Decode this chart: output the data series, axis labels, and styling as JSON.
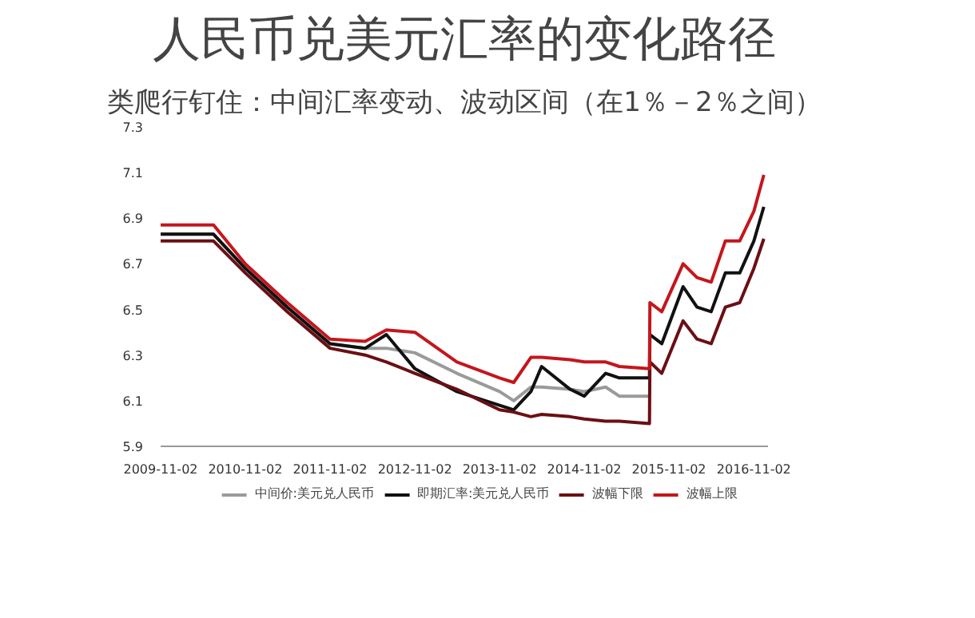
{
  "chart_data": {
    "type": "line",
    "title": "人民币兑美元汇率的变化路径",
    "subtitle": "类爬行钉住：中间汇率变动、波动区间（在1％－2％之间）",
    "xlim": [
      "2009-11-02",
      "2017-01-02"
    ],
    "xticks": [
      "2009-11-02",
      "2010-11-02",
      "2011-11-02",
      "2012-11-02",
      "2013-11-02",
      "2014-11-02",
      "2015-11-02",
      "2016-11-02"
    ],
    "ylim": [
      5.9,
      7.3
    ],
    "yticks": [
      5.9,
      6.1,
      6.3,
      6.5,
      6.7,
      6.9,
      7.1,
      7.3
    ],
    "grid": false,
    "legend": "bottom",
    "marker": "none",
    "line_style": "solid",
    "series": [
      {
        "name": "中间价:美元兑人民币",
        "color": "#9a9a9a",
        "x": [
          "2009-11-02",
          "2010-06-18",
          "2010-11-02",
          "2011-05-02",
          "2011-11-02",
          "2012-04-02",
          "2012-07-02",
          "2012-11-02",
          "2013-05-02",
          "2013-11-02",
          "2014-01-02",
          "2014-03-17",
          "2014-05-02",
          "2014-09-02",
          "2014-11-02",
          "2015-02-02",
          "2015-04-02",
          "2015-08-10"
        ],
        "values": [
          6.83,
          6.83,
          6.68,
          6.51,
          6.35,
          6.33,
          6.33,
          6.31,
          6.22,
          6.14,
          6.1,
          6.16,
          6.16,
          6.15,
          6.14,
          6.16,
          6.12,
          6.12
        ]
      },
      {
        "name": "即期汇率:美元兑人民币",
        "color": "#111111",
        "x": [
          "2009-11-02",
          "2010-06-18",
          "2010-11-02",
          "2011-05-02",
          "2011-11-02",
          "2012-04-02",
          "2012-07-02",
          "2012-11-02",
          "2013-05-02",
          "2013-11-02",
          "2014-01-02",
          "2014-03-17",
          "2014-05-02",
          "2014-09-02",
          "2014-11-02",
          "2015-02-02",
          "2015-04-02",
          "2015-08-10",
          "2015-08-12",
          "2015-10-02",
          "2016-01-02",
          "2016-03-02",
          "2016-05-02",
          "2016-07-02",
          "2016-09-02",
          "2016-11-02",
          "2016-12-15"
        ],
        "values": [
          6.83,
          6.83,
          6.68,
          6.51,
          6.35,
          6.33,
          6.39,
          6.24,
          6.14,
          6.08,
          6.06,
          6.14,
          6.25,
          6.15,
          6.12,
          6.22,
          6.2,
          6.2,
          6.39,
          6.35,
          6.6,
          6.51,
          6.49,
          6.66,
          6.66,
          6.8,
          6.95
        ]
      },
      {
        "name": "波幅下限",
        "color": "#6b0f14",
        "x": [
          "2009-11-02",
          "2010-06-18",
          "2010-11-02",
          "2011-05-02",
          "2011-11-02",
          "2012-04-02",
          "2012-07-02",
          "2012-11-02",
          "2013-05-02",
          "2013-11-02",
          "2014-01-02",
          "2014-03-17",
          "2014-05-02",
          "2014-09-02",
          "2014-11-02",
          "2015-02-02",
          "2015-04-02",
          "2015-08-10",
          "2015-08-12",
          "2015-10-02",
          "2016-01-02",
          "2016-03-02",
          "2016-05-02",
          "2016-07-02",
          "2016-09-02",
          "2016-11-02",
          "2016-12-15"
        ],
        "values": [
          6.8,
          6.8,
          6.66,
          6.49,
          6.33,
          6.3,
          6.27,
          6.22,
          6.15,
          6.06,
          6.05,
          6.03,
          6.04,
          6.03,
          6.02,
          6.01,
          6.01,
          6.0,
          6.27,
          6.22,
          6.45,
          6.37,
          6.35,
          6.51,
          6.53,
          6.68,
          6.81
        ]
      },
      {
        "name": "波幅上限",
        "color": "#c4161c",
        "x": [
          "2009-11-02",
          "2010-06-18",
          "2010-11-02",
          "2011-05-02",
          "2011-11-02",
          "2012-04-02",
          "2012-07-02",
          "2012-11-02",
          "2013-05-02",
          "2013-11-02",
          "2014-01-02",
          "2014-03-17",
          "2014-05-02",
          "2014-09-02",
          "2014-11-02",
          "2015-02-02",
          "2015-04-02",
          "2015-08-10",
          "2015-08-12",
          "2015-10-02",
          "2016-01-02",
          "2016-03-02",
          "2016-05-02",
          "2016-07-02",
          "2016-09-02",
          "2016-11-02",
          "2016-12-15"
        ],
        "values": [
          6.87,
          6.87,
          6.7,
          6.53,
          6.37,
          6.36,
          6.41,
          6.4,
          6.27,
          6.2,
          6.18,
          6.29,
          6.29,
          6.28,
          6.27,
          6.27,
          6.25,
          6.24,
          6.53,
          6.49,
          6.7,
          6.64,
          6.62,
          6.8,
          6.8,
          6.93,
          7.09
        ]
      }
    ]
  }
}
